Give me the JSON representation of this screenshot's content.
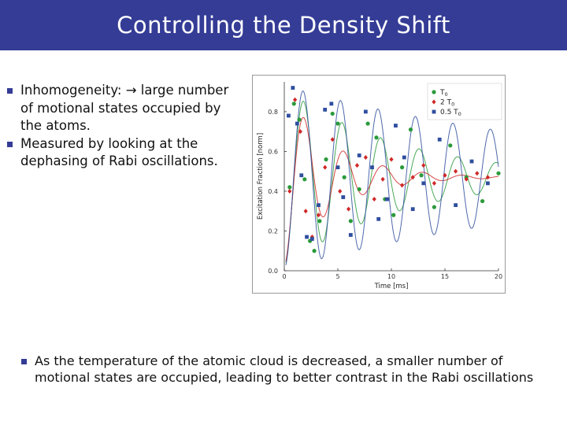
{
  "title": "Controlling the Density Shift",
  "bullets_top": [
    {
      "text_before": "Inhomogeneity: ",
      "arrow": "→",
      "text_after": "large number of motional states occupied by the atoms."
    },
    {
      "text_before": "Measured by looking at the dephasing of Rabi oscillations.",
      "arrow": "",
      "text_after": ""
    }
  ],
  "bullets_bottom": [
    "As the temperature of the atomic cloud is decreased, a smaller number of motional states are occupied, leading to better contrast in the Rabi oscillations"
  ],
  "chart_data": {
    "type": "scatter",
    "xlabel": "Time [ms]",
    "ylabel": "Excitation Fraction [norm]",
    "xlim": [
      0,
      20
    ],
    "ylim": [
      0,
      0.95
    ],
    "xticks": [
      0,
      5,
      10,
      15,
      20
    ],
    "yticks": [
      0.0,
      0.2,
      0.4,
      0.6,
      0.8
    ],
    "ytick_labels": [
      "0.0",
      "0.2",
      "0.4",
      "0.6",
      "0.8"
    ],
    "grid": false,
    "legend_position": "top-right",
    "series": [
      {
        "name": "T0",
        "name_main": "T",
        "name_sub": "0",
        "color": "#2a9a3a",
        "marker": "circle",
        "x": [
          0.5,
          0.9,
          1.4,
          1.9,
          2.4,
          2.8,
          3.3,
          3.9,
          4.5,
          5.0,
          5.6,
          6.2,
          7.0,
          7.8,
          8.6,
          9.4,
          10.2,
          11.0,
          11.8,
          12.8,
          14.0,
          15.5,
          17.0,
          18.5,
          20.0
        ],
        "y": [
          0.42,
          0.84,
          0.76,
          0.46,
          0.15,
          0.1,
          0.25,
          0.56,
          0.79,
          0.74,
          0.47,
          0.25,
          0.41,
          0.74,
          0.67,
          0.36,
          0.28,
          0.52,
          0.71,
          0.48,
          0.32,
          0.63,
          0.47,
          0.35,
          0.49
        ]
      },
      {
        "name": "2T0",
        "name_main": "2 T",
        "name_sub": "0",
        "color": "#d02828",
        "marker": "diamond",
        "x": [
          0.5,
          1.0,
          1.5,
          2.0,
          2.6,
          3.2,
          3.8,
          4.5,
          5.2,
          6.0,
          6.8,
          7.6,
          8.4,
          9.2,
          10.0,
          11.0,
          12.0,
          13.0,
          14.0,
          15.0,
          16.0,
          17.0,
          18.0,
          19.0
        ],
        "y": [
          0.4,
          0.86,
          0.7,
          0.3,
          0.17,
          0.28,
          0.52,
          0.66,
          0.4,
          0.31,
          0.53,
          0.57,
          0.36,
          0.46,
          0.56,
          0.43,
          0.47,
          0.53,
          0.44,
          0.48,
          0.5,
          0.46,
          0.49,
          0.47
        ]
      },
      {
        "name": "0.5T0",
        "name_main": "0.5 T",
        "name_sub": "0",
        "color": "#2f4e9e",
        "marker": "square",
        "x": [
          0.4,
          0.8,
          1.2,
          1.6,
          2.1,
          2.6,
          3.2,
          3.8,
          4.4,
          5.0,
          5.5,
          6.2,
          7.0,
          7.6,
          8.2,
          8.8,
          9.6,
          10.4,
          11.2,
          12.0,
          13.0,
          14.5,
          16.0,
          17.5,
          19.0
        ],
        "y": [
          0.78,
          0.92,
          0.74,
          0.48,
          0.17,
          0.16,
          0.33,
          0.81,
          0.84,
          0.52,
          0.37,
          0.18,
          0.58,
          0.8,
          0.52,
          0.26,
          0.36,
          0.73,
          0.57,
          0.31,
          0.44,
          0.66,
          0.33,
          0.55,
          0.44
        ]
      }
    ],
    "fits": [
      {
        "series": "T0",
        "color": "#2a9a3a",
        "amplitude": 0.45,
        "offset": 0.47,
        "period_ms": 3.6,
        "decay_ms": 11
      },
      {
        "series": "2T0",
        "color": "#d02828",
        "amplitude": 0.45,
        "offset": 0.47,
        "period_ms": 3.7,
        "decay_ms": 4.5
      },
      {
        "series": "0.5T0",
        "color": "#2f4e9e",
        "amplitude": 0.46,
        "offset": 0.47,
        "period_ms": 3.5,
        "decay_ms": 30
      }
    ]
  }
}
